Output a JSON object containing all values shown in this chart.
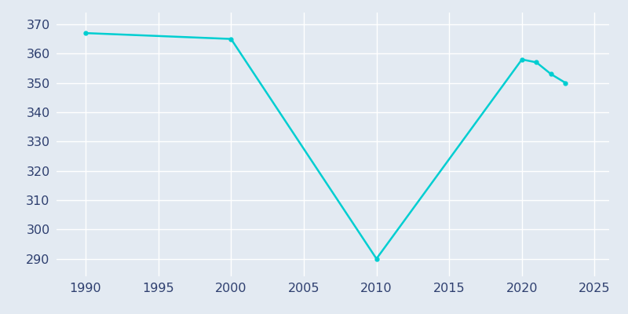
{
  "years": [
    1990,
    2000,
    2010,
    2020,
    2021,
    2022,
    2023
  ],
  "population": [
    367,
    365,
    290,
    358,
    357,
    353,
    350
  ],
  "line_color": "#00CED1",
  "marker_color": "#00CED1",
  "bg_color": "#E3EAF2",
  "grid_color": "#FFFFFF",
  "xlim": [
    1988,
    2026
  ],
  "ylim": [
    284,
    374
  ],
  "xticks": [
    1990,
    1995,
    2000,
    2005,
    2010,
    2015,
    2020,
    2025
  ],
  "yticks": [
    290,
    300,
    310,
    320,
    330,
    340,
    350,
    360,
    370
  ],
  "tick_label_color": "#2E3F6F",
  "tick_fontsize": 11.5
}
